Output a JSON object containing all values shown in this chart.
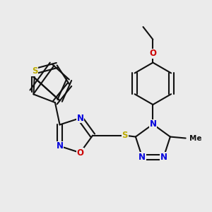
{
  "bg": "#ebebeb",
  "bc": "#111111",
  "bw": 1.5,
  "ds": 0.012,
  "fs": 8.5,
  "N": "#0000dd",
  "O": "#cc0000",
  "S": "#bbaa00",
  "C": "#111111"
}
